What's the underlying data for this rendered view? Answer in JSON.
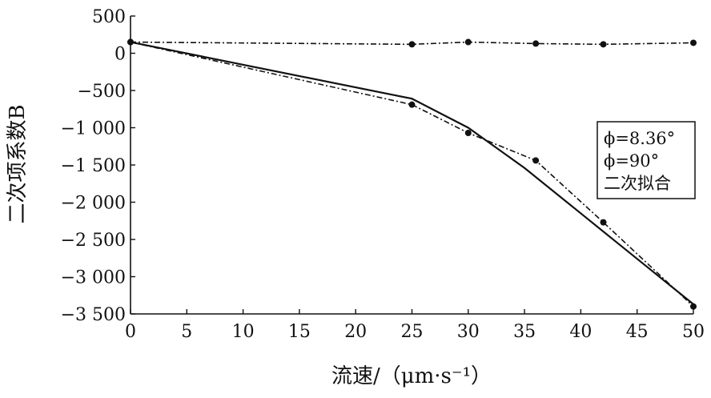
{
  "chart_data": {
    "type": "line",
    "xlabel": "流速/（μm·s⁻¹）",
    "ylabel": "二次项系数B",
    "xlim": [
      0,
      50
    ],
    "ylim": [
      -3500,
      500
    ],
    "x_ticks": [
      "0",
      "5",
      "10",
      "15",
      "20",
      "25",
      "30",
      "35",
      "40",
      "45",
      "50"
    ],
    "y_ticks": [
      "500",
      "0",
      "-500",
      "-1 000",
      "-1 500",
      "-2 000",
      "-2 500",
      "-3 000",
      "-3 500"
    ],
    "grid": false,
    "legend_position": "right",
    "series": [
      {
        "name": "ϕ=8.36°",
        "style": "dash-dot",
        "markers": true,
        "x": [
          0,
          25,
          30,
          36,
          42,
          50
        ],
        "y": [
          150,
          -690,
          -1070,
          -1440,
          -2270,
          -3400
        ]
      },
      {
        "name": "ϕ=90°",
        "style": "dash-dot",
        "markers": true,
        "x": [
          0,
          25,
          30,
          36,
          42,
          50
        ],
        "y": [
          150,
          120,
          150,
          130,
          120,
          140
        ]
      },
      {
        "name": "二次拟合",
        "style": "solid",
        "markers": false,
        "x": [
          0,
          25,
          30,
          35,
          40,
          45,
          50
        ],
        "y": [
          150,
          -610,
          -1000,
          -1540,
          -2150,
          -2760,
          -3370
        ]
      }
    ],
    "color": "#111111"
  }
}
